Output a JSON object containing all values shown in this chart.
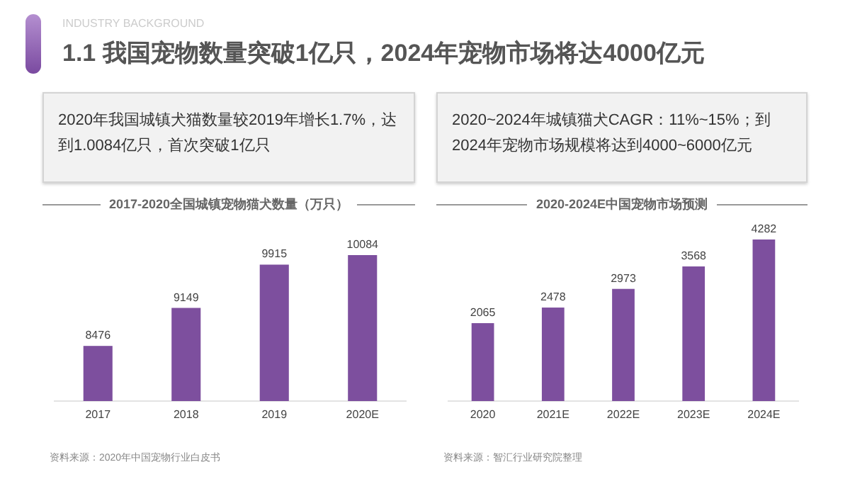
{
  "chart_data": [
    {
      "type": "other",
      "title": "1.1 我国宠物数量突破1亿只，2024年宠物市场将达4000亿元",
      "subtitle": "INDUSTRY BACKGROUND"
    },
    {
      "type": "bar",
      "subtitle": "2020年我国城镇犬猫数量较2019年增长1.7%，达到1.0084亿只，首次突破1亿只",
      "title": "2017-2020全国城镇宠物猫犬数量（万只）",
      "categories": [
        "2017",
        "2018",
        "2019",
        "2020E"
      ],
      "values": [
        8476,
        9149,
        9915,
        10084
      ],
      "color": "#7d4f9e",
      "ylim": [
        7500,
        10084
      ],
      "data_labels": true,
      "tick_labels": "x",
      "annotations": [
        "资料来源：2020年中国宠物行业白皮书"
      ]
    },
    {
      "type": "bar",
      "subtitle": "2020~2024年城镇猫犬CAGR：11%~15%；到2024年宠物市场规模将达到4000~6000亿元",
      "title": "2020-2024E中国宠物市场预测",
      "categories": [
        "2020",
        "2021E",
        "2022E",
        "2023E",
        "2024E"
      ],
      "values": [
        2065,
        2478,
        2973,
        3568,
        4282
      ],
      "color": "#7d4f9e",
      "ylim": [
        0,
        4282
      ],
      "data_labels": true,
      "tick_labels": "x",
      "annotations": [
        "资料来源：智汇行业研究院整理"
      ]
    }
  ]
}
